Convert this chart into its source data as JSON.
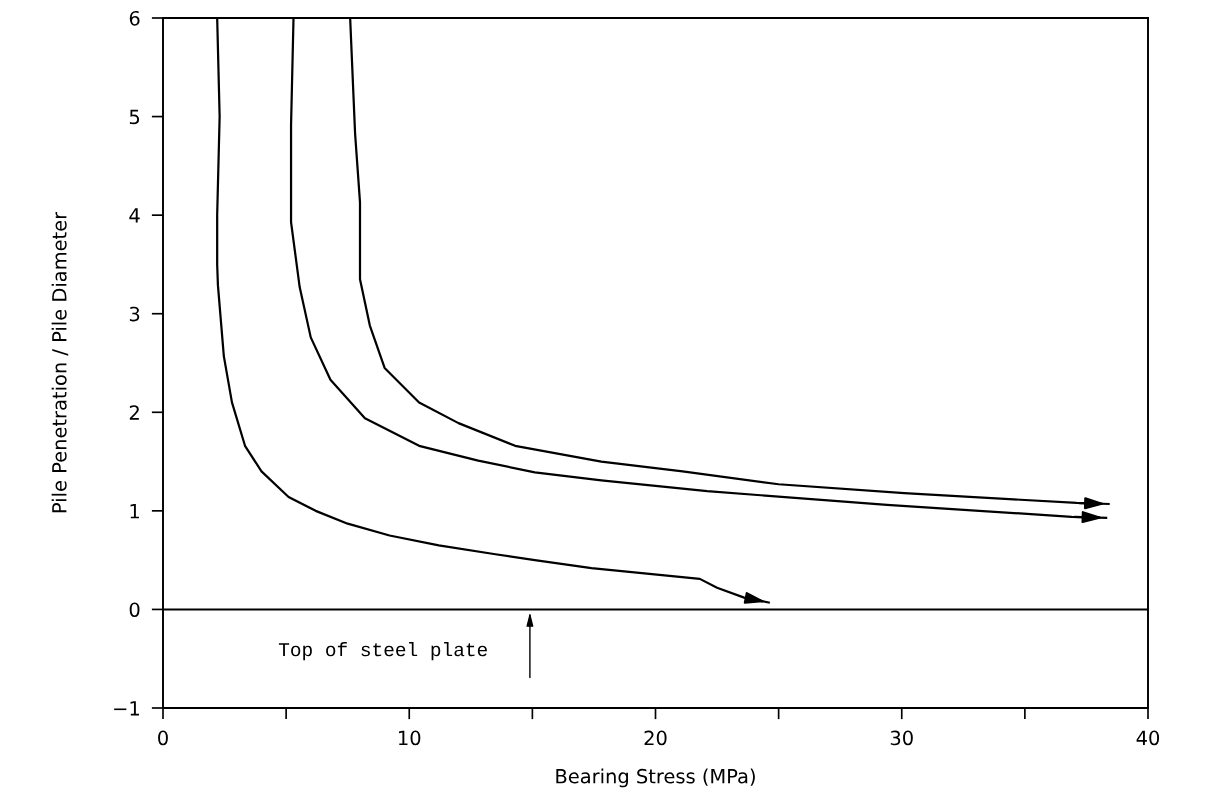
{
  "chart_data": {
    "type": "line",
    "xlabel": "Bearing Stress (MPa)",
    "ylabel": "Pile Penetration / Pile Diameter",
    "xlim": [
      0,
      40
    ],
    "ylim": [
      -1,
      6
    ],
    "xticks": [
      0,
      {
        "value": 5,
        "label": null
      },
      10,
      {
        "value": 15,
        "label": null
      },
      20,
      {
        "value": 25,
        "label": null
      },
      30,
      {
        "value": 35,
        "label": null
      },
      40
    ],
    "yticks": [
      -1,
      0,
      1,
      2,
      3,
      4,
      5,
      6
    ],
    "grid": false,
    "legend": false,
    "marker": "none",
    "line_style": "solid",
    "series": [
      {
        "color": "#000000",
        "x": [
          2.2,
          2.3,
          2.2,
          2.2,
          2.23,
          2.47,
          2.8,
          3.33,
          4.0,
          5.1,
          6.2,
          7.5,
          9.2,
          11.2,
          13.5,
          15.1,
          17.4,
          21.8,
          22.5,
          23.6,
          24.6
        ],
        "values": [
          6,
          5,
          4,
          3.5,
          3.29,
          2.57,
          2.1,
          1.66,
          1.4,
          1.14,
          1.0,
          0.87,
          0.75,
          0.65,
          0.56,
          0.5,
          0.42,
          0.31,
          0.22,
          0.12,
          0.07
        ]
      },
      {
        "color": "#000000",
        "x": [
          5.3,
          5.2,
          5.2,
          5.55,
          6.0,
          6.8,
          8.2,
          10.4,
          12.8,
          15.1,
          17.8,
          22.1,
          29.4,
          36.9,
          38.3
        ],
        "values": [
          6,
          4.91,
          3.93,
          3.27,
          2.76,
          2.33,
          1.94,
          1.66,
          1.51,
          1.39,
          1.31,
          1.2,
          1.06,
          0.94,
          0.93
        ]
      },
      {
        "color": "#000000",
        "x": [
          7.6,
          7.8,
          8.0,
          8.0,
          8.4,
          9.0,
          10.4,
          12.0,
          14.3,
          17.8,
          21.1,
          25.0,
          30.1,
          37.1,
          38.4
        ],
        "values": [
          6,
          4.83,
          4.13,
          3.35,
          2.88,
          2.45,
          2.1,
          1.89,
          1.66,
          1.5,
          1.4,
          1.27,
          1.18,
          1.08,
          1.07
        ]
      }
    ],
    "ref_lines": [
      {
        "axis": "y",
        "value": 0,
        "color": "#000000"
      }
    ],
    "annotations": [
      {
        "text": "Top of steel plate",
        "x": 14.9,
        "y": 0
      }
    ]
  }
}
